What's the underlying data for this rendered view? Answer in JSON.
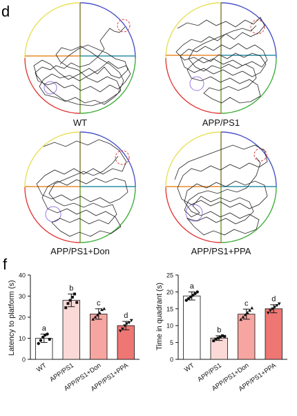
{
  "panels": {
    "d": "d",
    "f": "f"
  },
  "mazes": [
    {
      "label": "WT",
      "colors": {
        "top_left": "#e8e05a",
        "top_right": "#4a52c8",
        "bottom_left": "#e23a3a",
        "bottom_right": "#3fae3a"
      }
    },
    {
      "label": "APP/PS1",
      "colors": {
        "top_left": "#e8e05a",
        "top_right": "#4a52c8",
        "bottom_left": "#e23a3a",
        "bottom_right": "#3fae3a"
      }
    },
    {
      "label": "APP/PS1+Don",
      "colors": {
        "top_left": "#e8e05a",
        "top_right": "#4a52c8",
        "bottom_left": "#e23a3a",
        "bottom_right": "#3fae3a"
      }
    },
    {
      "label": "APP/PS1+PPA",
      "colors": {
        "top_left": "#e8e05a",
        "top_right": "#4a52c8",
        "bottom_left": "#e23a3a",
        "bottom_right": "#3fae3a"
      }
    }
  ],
  "chart_data": [
    {
      "type": "bar",
      "ylabel": "Latency to platform (s)",
      "ylim": [
        0,
        40
      ],
      "yticks": [
        0,
        10,
        20,
        30,
        40
      ],
      "categories": [
        "WT",
        "APP/PS1",
        "APP/PS1+Don",
        "APP/PS1+PPA"
      ],
      "values": [
        10,
        28,
        21.5,
        16
      ],
      "errors": [
        2,
        3,
        2.5,
        2
      ],
      "letters": [
        "a",
        "b",
        "c",
        "d"
      ],
      "colors": [
        "#ffffff",
        "#fbd9d7",
        "#f6a5a1",
        "#ee7673"
      ],
      "points": [
        [
          7.5,
          9,
          10.5,
          11.5,
          12,
          9.5
        ],
        [
          24.5,
          26.5,
          28,
          29.5,
          31,
          27
        ],
        [
          19,
          20,
          21,
          22,
          23.5,
          24
        ],
        [
          13.5,
          14.5,
          16,
          17,
          17.5,
          18.5
        ]
      ]
    },
    {
      "type": "bar",
      "ylabel": "Time in quadrant (s)",
      "ylim": [
        0,
        25
      ],
      "yticks": [
        0,
        5,
        10,
        15,
        20,
        25
      ],
      "categories": [
        "WT",
        "APP/PS1",
        "APP/PS1+Don",
        "APP/PS1+PPA"
      ],
      "values": [
        18.8,
        6.3,
        13.4,
        15
      ],
      "errors": [
        1.2,
        0.7,
        1.5,
        1.2
      ],
      "letters": [
        "a",
        "b",
        "c",
        "d"
      ],
      "colors": [
        "#ffffff",
        "#fbd9d7",
        "#f6a5a1",
        "#ee7673"
      ],
      "points": [
        [
          17.5,
          18,
          18.5,
          19,
          19.5,
          20
        ],
        [
          5.5,
          6,
          6.3,
          6.6,
          7,
          6.8
        ],
        [
          11.8,
          12.5,
          13.2,
          13.8,
          14.5,
          15.2
        ],
        [
          13.8,
          14.5,
          15,
          15.5,
          16,
          16.5
        ]
      ]
    }
  ]
}
